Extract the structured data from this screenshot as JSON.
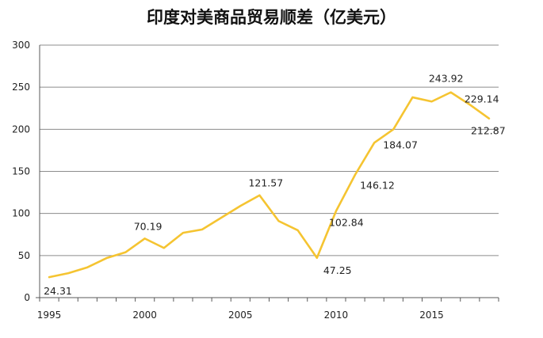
{
  "chart_data": {
    "type": "line",
    "title": "印度对美商品贸易顺差（亿美元）",
    "xlabel": "",
    "ylabel": "",
    "x": [
      1995,
      1996,
      1997,
      1998,
      1999,
      2000,
      2001,
      2002,
      2003,
      2004,
      2005,
      2006,
      2007,
      2008,
      2009,
      2010,
      2011,
      2012,
      2013,
      2014,
      2015,
      2016,
      2017,
      2018
    ],
    "series": [
      {
        "values": [
          24.31,
          29,
          36,
          47,
          54,
          70.19,
          59,
          77,
          81,
          95,
          109,
          121.57,
          91,
          80,
          47.25,
          102.84,
          146.12,
          184.07,
          200,
          238,
          233,
          243.92,
          229.14,
          212.87
        ]
      }
    ],
    "data_labels": [
      {
        "x": 1995,
        "text": "24.31"
      },
      {
        "x": 2000,
        "text": "70.19"
      },
      {
        "x": 2006,
        "text": "121.57"
      },
      {
        "x": 2009,
        "text": "47.25"
      },
      {
        "x": 2010,
        "text": "102.84"
      },
      {
        "x": 2011,
        "text": "146.12"
      },
      {
        "x": 2012,
        "text": "184.07"
      },
      {
        "x": 2016,
        "text": "243.92"
      },
      {
        "x": 2017,
        "text": "229.14"
      },
      {
        "x": 2018,
        "text": "212.87"
      }
    ],
    "xlim": [
      1994.5,
      2018.5
    ],
    "ylim": [
      0,
      300
    ],
    "x_ticks": [
      1995,
      2000,
      2005,
      2010,
      2015
    ],
    "y_ticks": [
      0,
      50,
      100,
      150,
      200,
      250,
      300
    ],
    "grid": true,
    "legend": "none",
    "line_color": "#F5C431",
    "grid_color": "#8C8C8C"
  }
}
